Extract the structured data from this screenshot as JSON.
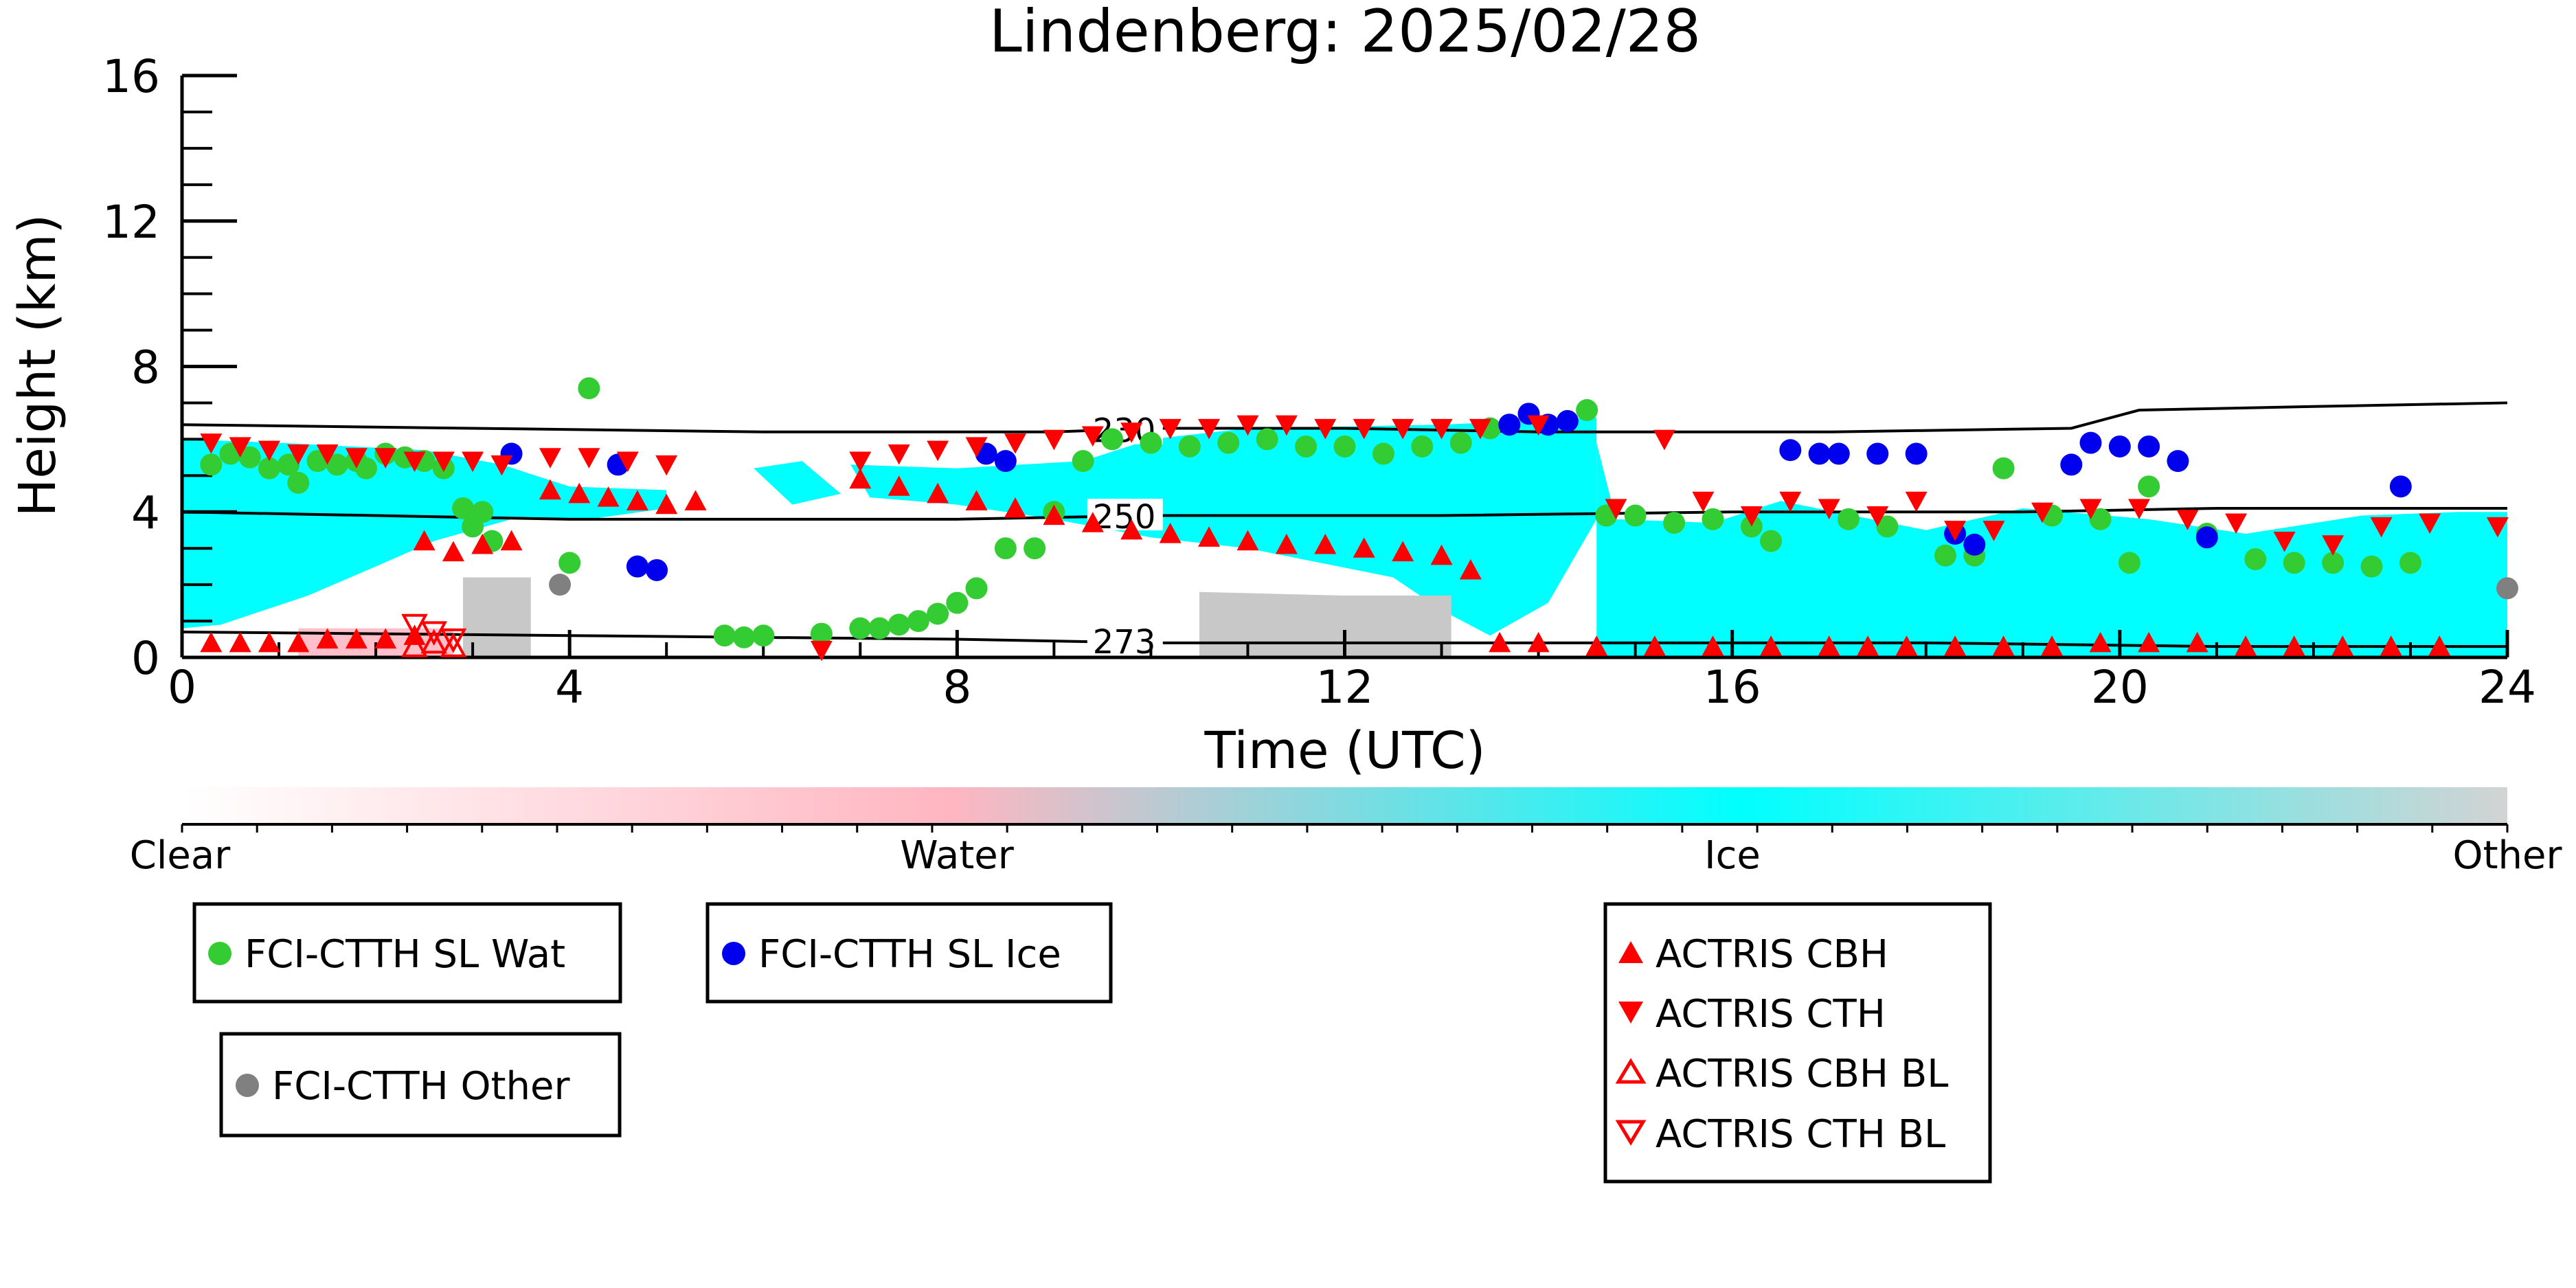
{
  "chart_data": {
    "type": "scatter",
    "title": "Lindenberg: 2025/02/28",
    "xlabel": "Time (UTC)",
    "ylabel": "Height (km)",
    "xlim": [
      0,
      24
    ],
    "ylim": [
      0,
      16
    ],
    "xticks": [
      "0",
      "4",
      "8",
      "12",
      "16",
      "20",
      "24"
    ],
    "yticks": [
      "0",
      "4",
      "8",
      "12",
      "16"
    ],
    "grid": false,
    "colors": {
      "wat": "#33cc33",
      "ice": "#0000ee",
      "other": "#808080",
      "actris": "#ff0000",
      "cloud_ice": "#00ffff",
      "cloud_other": "#c8c8c8",
      "cloud_water": "#ffc0cb"
    },
    "colorbar": {
      "labels": [
        "Clear",
        "Water",
        "Ice",
        "Other"
      ],
      "stops": [
        "#ffffff",
        "#ffb6c1",
        "#00ffff",
        "#d3d3d3"
      ]
    },
    "isotherms": [
      {
        "label": "230",
        "label_x": 9.4,
        "points": [
          [
            0,
            6.4
          ],
          [
            3,
            6.3
          ],
          [
            6,
            6.2
          ],
          [
            9,
            6.2
          ],
          [
            10,
            6.3
          ],
          [
            12,
            6.3
          ],
          [
            14,
            6.2
          ],
          [
            17,
            6.2
          ],
          [
            19.5,
            6.3
          ],
          [
            20.2,
            6.8
          ],
          [
            22,
            6.9
          ],
          [
            24,
            7.0
          ]
        ]
      },
      {
        "label": "250",
        "label_x": 9.4,
        "points": [
          [
            0,
            4.0
          ],
          [
            4,
            3.8
          ],
          [
            8,
            3.8
          ],
          [
            10,
            3.9
          ],
          [
            13,
            3.9
          ],
          [
            16,
            4.0
          ],
          [
            19,
            4.0
          ],
          [
            21,
            4.1
          ],
          [
            24,
            4.1
          ]
        ]
      },
      {
        "label": "273",
        "label_x": 9.4,
        "points": [
          [
            0,
            0.7
          ],
          [
            4,
            0.6
          ],
          [
            8,
            0.5
          ],
          [
            10,
            0.4
          ],
          [
            14,
            0.4
          ],
          [
            18,
            0.4
          ],
          [
            21,
            0.3
          ],
          [
            24,
            0.3
          ]
        ]
      }
    ],
    "cloud_regions": [
      {
        "type": "ice",
        "points": [
          [
            0,
            6.0
          ],
          [
            1,
            5.9
          ],
          [
            2.5,
            5.7
          ],
          [
            3.3,
            5.3
          ],
          [
            4,
            4.7
          ],
          [
            5,
            4.6
          ],
          [
            5,
            4.1
          ],
          [
            4.2,
            3.8
          ],
          [
            3.4,
            3.8
          ],
          [
            2.6,
            3.2
          ],
          [
            2,
            2.5
          ],
          [
            1.3,
            1.7
          ],
          [
            0.4,
            0.9
          ],
          [
            0,
            0.8
          ]
        ]
      },
      {
        "type": "ice",
        "points": [
          [
            6.9,
            5.3
          ],
          [
            8,
            5.2
          ],
          [
            9.3,
            5.4
          ],
          [
            10,
            6.0
          ],
          [
            11,
            6.3
          ],
          [
            13,
            6.4
          ],
          [
            14.6,
            6.6
          ],
          [
            14.6,
            3.8
          ],
          [
            14.1,
            1.5
          ],
          [
            13.5,
            0.6
          ],
          [
            13,
            1.3
          ],
          [
            12.5,
            2.2
          ],
          [
            11,
            3.0
          ],
          [
            10,
            3.3
          ],
          [
            9,
            3.8
          ],
          [
            8,
            4.2
          ],
          [
            7.1,
            4.4
          ]
        ]
      },
      {
        "type": "ice",
        "points": [
          [
            14.6,
            5.9
          ],
          [
            14.8,
            3.8
          ],
          [
            15.8,
            3.7
          ],
          [
            16.5,
            4.3
          ],
          [
            18,
            3.5
          ],
          [
            19,
            4.1
          ],
          [
            20.3,
            3.8
          ],
          [
            21.3,
            3.4
          ],
          [
            22.5,
            3.9
          ],
          [
            23.5,
            4.0
          ],
          [
            24,
            4.0
          ],
          [
            24,
            0
          ],
          [
            14.6,
            0
          ],
          [
            14.6,
            3.0
          ]
        ]
      },
      {
        "type": "ice",
        "points": [
          [
            5.9,
            5.2
          ],
          [
            6.4,
            5.4
          ],
          [
            6.8,
            4.5
          ],
          [
            6.3,
            4.2
          ]
        ]
      },
      {
        "type": "other",
        "points": [
          [
            2.9,
            2.2
          ],
          [
            3.6,
            2.2
          ],
          [
            3.6,
            0
          ],
          [
            2.9,
            0
          ]
        ]
      },
      {
        "type": "other",
        "points": [
          [
            10.5,
            1.8
          ],
          [
            12,
            1.7
          ],
          [
            13.1,
            1.7
          ],
          [
            13.1,
            0
          ],
          [
            10.5,
            0
          ]
        ]
      },
      {
        "type": "water",
        "points": [
          [
            1.2,
            0.8
          ],
          [
            2.8,
            0.8
          ],
          [
            2.8,
            0
          ],
          [
            1.2,
            0
          ]
        ]
      }
    ],
    "series": [
      {
        "name": "FCI-CTTH SL Wat",
        "marker": "circle",
        "color": "#33cc33",
        "x": [
          0.3,
          0.5,
          0.7,
          0.9,
          1.1,
          1.2,
          1.4,
          1.6,
          1.8,
          1.9,
          2.1,
          2.3,
          2.5,
          2.7,
          2.9,
          3.0,
          3.1,
          3.2,
          4.2,
          4.0,
          5.6,
          5.8,
          6.0,
          6.6,
          7.0,
          7.2,
          7.4,
          7.6,
          7.8,
          8.0,
          8.2,
          8.5,
          8.8,
          9.0,
          9.3,
          9.6,
          10.0,
          10.4,
          10.8,
          11.2,
          11.6,
          12.0,
          12.4,
          12.8,
          13.2,
          13.5,
          14.5,
          14.7,
          15.0,
          15.4,
          15.8,
          16.2,
          16.4,
          17.2,
          17.6,
          18.2,
          18.5,
          18.8,
          19.3,
          19.8,
          20.1,
          20.3,
          20.9,
          21.4,
          21.8,
          22.2,
          22.6,
          23.0
        ],
        "y": [
          5.3,
          5.6,
          5.5,
          5.2,
          5.3,
          4.8,
          5.4,
          5.3,
          5.4,
          5.2,
          5.6,
          5.5,
          5.4,
          5.2,
          4.1,
          3.6,
          4.0,
          3.2,
          7.4,
          2.6,
          0.6,
          0.55,
          0.6,
          0.65,
          0.8,
          0.8,
          0.9,
          1.0,
          1.2,
          1.5,
          1.9,
          3.0,
          3.0,
          4.0,
          5.4,
          6.0,
          5.9,
          5.8,
          5.9,
          6.0,
          5.8,
          5.8,
          5.6,
          5.8,
          5.9,
          6.3,
          6.8,
          3.9,
          3.9,
          3.7,
          3.8,
          3.6,
          3.2,
          3.8,
          3.6,
          2.8,
          2.8,
          5.2,
          3.9,
          3.8,
          2.6,
          4.7,
          3.4,
          2.7,
          2.6,
          2.6,
          2.5,
          2.6
        ]
      },
      {
        "name": "FCI-CTTH SL Ice",
        "marker": "circle",
        "color": "#0000ee",
        "x": [
          3.4,
          4.5,
          4.7,
          4.9,
          8.3,
          8.5,
          13.7,
          13.9,
          14.1,
          14.3,
          16.6,
          16.9,
          17.1,
          17.5,
          17.9,
          18.3,
          18.5,
          19.5,
          19.7,
          20.0,
          20.3,
          20.6,
          20.9,
          22.9
        ],
        "y": [
          5.6,
          5.3,
          2.5,
          2.4,
          5.6,
          5.4,
          6.4,
          6.7,
          6.4,
          6.5,
          5.7,
          5.6,
          5.6,
          5.6,
          5.6,
          3.4,
          3.1,
          5.3,
          5.9,
          5.8,
          5.8,
          5.4,
          3.3,
          4.7
        ]
      },
      {
        "name": "FCI-CTTH Other",
        "marker": "circle",
        "color": "#808080",
        "x": [
          3.9,
          24.0
        ],
        "y": [
          2.0,
          1.9
        ]
      },
      {
        "name": "ACTRIS CBH",
        "marker": "triangle-up",
        "color": "#ff0000",
        "filled": true,
        "x": [
          0.3,
          0.6,
          0.9,
          1.2,
          1.5,
          1.8,
          2.1,
          2.4,
          2.5,
          2.8,
          3.1,
          3.4,
          3.8,
          4.1,
          4.4,
          4.7,
          5.0,
          5.3,
          7.0,
          7.4,
          7.8,
          8.2,
          8.6,
          9.0,
          9.4,
          9.8,
          10.2,
          10.6,
          11.0,
          11.4,
          11.8,
          12.2,
          12.6,
          13.0,
          13.3,
          13.6,
          14.0,
          14.6,
          15.2,
          15.8,
          16.4,
          17.0,
          17.4,
          17.8,
          18.3,
          18.8,
          19.3,
          19.8,
          20.3,
          20.8,
          21.3,
          21.8,
          22.3,
          22.8,
          23.3
        ],
        "y": [
          0.4,
          0.4,
          0.4,
          0.4,
          0.5,
          0.5,
          0.5,
          0.6,
          3.2,
          2.9,
          3.1,
          3.2,
          4.6,
          4.5,
          4.4,
          4.3,
          4.2,
          4.3,
          4.9,
          4.7,
          4.5,
          4.3,
          4.1,
          3.9,
          3.7,
          3.5,
          3.4,
          3.3,
          3.2,
          3.1,
          3.1,
          3.0,
          2.9,
          2.8,
          2.4,
          0.4,
          0.4,
          0.3,
          0.3,
          0.3,
          0.3,
          0.3,
          0.3,
          0.3,
          0.3,
          0.3,
          0.3,
          0.4,
          0.4,
          0.4,
          0.3,
          0.3,
          0.3,
          0.3,
          0.3
        ]
      },
      {
        "name": "ACTRIS CTH",
        "marker": "triangle-down",
        "color": "#ff0000",
        "filled": true,
        "x": [
          0.3,
          0.6,
          0.9,
          1.2,
          1.5,
          1.8,
          2.1,
          2.4,
          2.7,
          3.0,
          3.3,
          3.8,
          4.2,
          4.6,
          5.0,
          6.6,
          7.0,
          7.4,
          7.8,
          8.2,
          8.6,
          9.0,
          9.4,
          9.8,
          10.2,
          10.6,
          11.0,
          11.4,
          11.8,
          12.2,
          12.6,
          13.0,
          13.4,
          14.0,
          14.8,
          15.3,
          15.7,
          16.2,
          16.6,
          17.0,
          17.5,
          17.9,
          18.3,
          18.7,
          19.2,
          19.7,
          20.2,
          20.7,
          21.2,
          21.7,
          22.2,
          22.7,
          23.2,
          23.9
        ],
        "y": [
          5.9,
          5.8,
          5.7,
          5.6,
          5.6,
          5.5,
          5.5,
          5.4,
          5.4,
          5.4,
          5.3,
          5.5,
          5.5,
          5.4,
          5.3,
          0.2,
          5.4,
          5.6,
          5.7,
          5.8,
          5.9,
          6.0,
          6.1,
          6.2,
          6.3,
          6.3,
          6.4,
          6.4,
          6.3,
          6.3,
          6.3,
          6.3,
          6.3,
          6.4,
          4.1,
          6.0,
          4.3,
          3.9,
          4.3,
          4.1,
          3.9,
          4.3,
          3.5,
          3.5,
          4.0,
          4.1,
          4.1,
          3.8,
          3.7,
          3.2,
          3.1,
          3.6,
          3.7,
          3.6
        ]
      },
      {
        "name": "ACTRIS CBH BL",
        "marker": "triangle-up",
        "color": "#ff0000",
        "filled": false,
        "x": [
          2.4,
          2.6,
          2.8
        ],
        "y": [
          0.3,
          0.4,
          0.3
        ]
      },
      {
        "name": "ACTRIS CTH BL",
        "marker": "triangle-down",
        "color": "#ff0000",
        "filled": false,
        "x": [
          2.4,
          2.6,
          2.8
        ],
        "y": [
          0.9,
          0.7,
          0.5
        ]
      }
    ],
    "legends": [
      {
        "entries": [
          "FCI-CTTH SL Wat"
        ],
        "position": "below-left"
      },
      {
        "entries": [
          "FCI-CTTH SL Ice"
        ],
        "position": "below-center-left"
      },
      {
        "entries": [
          "FCI-CTTH Other"
        ],
        "position": "below-left"
      },
      {
        "entries": [
          "ACTRIS CBH",
          "ACTRIS CTH",
          "ACTRIS CBH BL",
          "ACTRIS CTH BL"
        ],
        "position": "below-right"
      }
    ]
  }
}
